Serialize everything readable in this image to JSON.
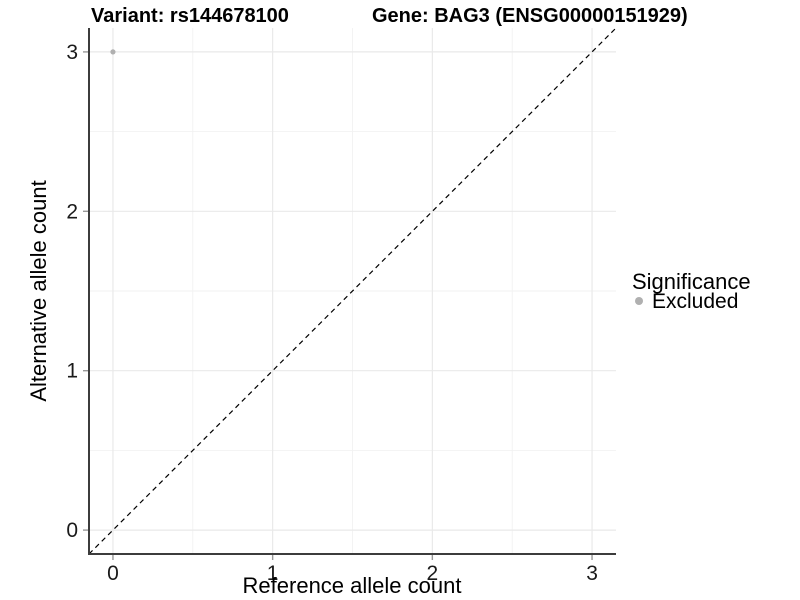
{
  "titles": {
    "left": "Variant: rs144678100",
    "right": "Gene: BAG3 (ENSG00000151929)"
  },
  "chart_data": {
    "type": "scatter",
    "title_left": "Variant: rs144678100",
    "title_right": "Gene: BAG3 (ENSG00000151929)",
    "xlabel": "Reference allele count",
    "ylabel": "Alternative allele count",
    "xlim": [
      -0.15,
      3.15
    ],
    "ylim": [
      -0.15,
      3.15
    ],
    "x_ticks": [
      0,
      1,
      2,
      3
    ],
    "y_ticks": [
      0,
      1,
      2,
      3
    ],
    "x_minor_ticks": [
      0.5,
      1.5,
      2.5
    ],
    "y_minor_ticks": [
      0.5,
      1.5,
      2.5
    ],
    "grid": true,
    "legend_position": "right",
    "points": [
      {
        "x": 0,
        "y": 3,
        "series": "Excluded"
      }
    ],
    "reference_line": {
      "type": "identity",
      "style": "dashed",
      "color": "#000000"
    },
    "legend": {
      "title": "Significance",
      "entries": [
        {
          "label": "Excluded",
          "marker": "circle",
          "color": "#b0b0b0"
        }
      ]
    },
    "colors": {
      "point": "#b0b0b0",
      "grid_major": "#e9e9e9",
      "grid_minor": "#f2f2f2",
      "axis_line": "#3c3c3c",
      "tick_mark": "#999999",
      "text": "#000000"
    }
  }
}
